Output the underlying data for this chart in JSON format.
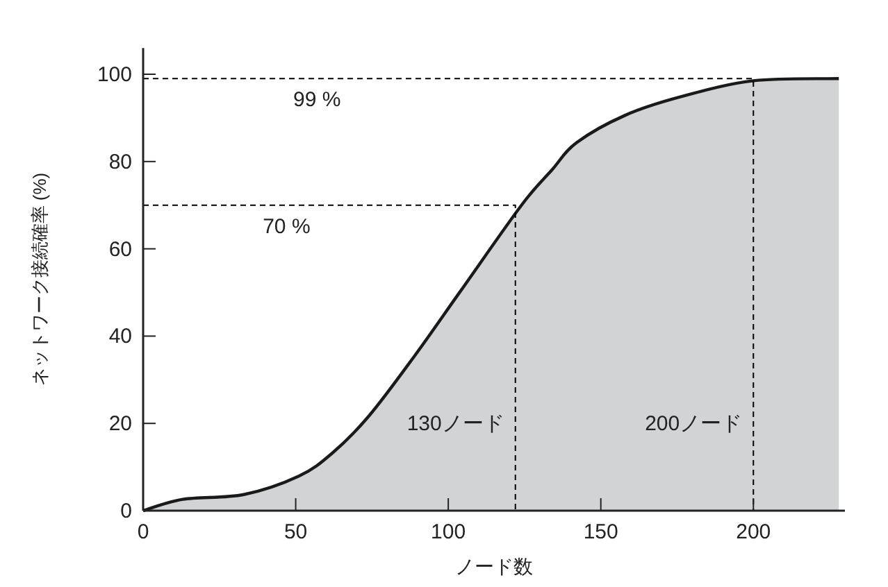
{
  "chart_data": {
    "type": "area",
    "xlabel": "ノード数",
    "ylabel": "ネットワーク接続確率 (%)",
    "xlim": [
      0,
      230
    ],
    "ylim": [
      0,
      106
    ],
    "xticks": [
      0,
      50,
      100,
      150,
      200
    ],
    "yticks": [
      0,
      20,
      40,
      60,
      80,
      100
    ],
    "grid": false,
    "series": [
      {
        "color": "#d1d3d4",
        "x": [
          0,
          13,
          33,
          51,
          62,
          74,
          89,
          104,
          124,
          134,
          142,
          158,
          176,
          200,
          228
        ],
        "values": [
          0,
          2.6,
          3.7,
          7.9,
          13.2,
          21.7,
          35.5,
          50.3,
          70,
          78.1,
          84.3,
          90.6,
          94.8,
          98.5,
          99
        ]
      },
      {
        "type": "line",
        "color": "#000000",
        "line_style": "dashed",
        "x": [
          0,
          122,
          122
        ],
        "values": [
          70,
          70,
          0
        ]
      },
      {
        "type": "line",
        "color": "#000000",
        "line_style": "dashed",
        "x": [
          0,
          200,
          200
        ],
        "values": [
          99,
          99,
          0
        ]
      }
    ],
    "annotations": [
      {
        "text": "99 %",
        "x": 57,
        "y": 99
      },
      {
        "text": "70 %",
        "x": 47,
        "y": 70
      },
      {
        "text": "130ノード",
        "x": 122,
        "y": 20
      },
      {
        "text": "200ノード",
        "x": 200,
        "y": 20
      }
    ]
  }
}
